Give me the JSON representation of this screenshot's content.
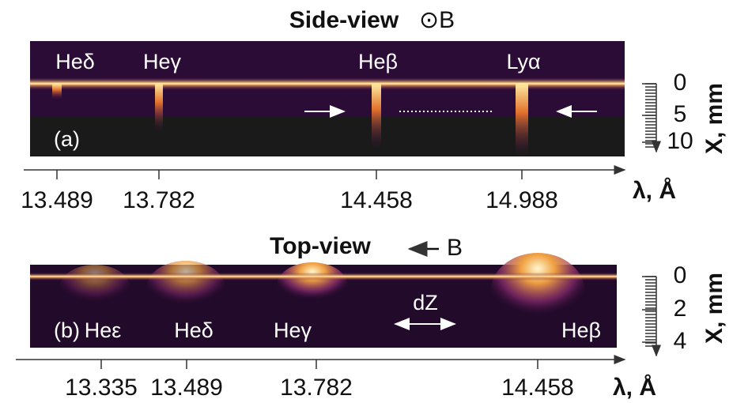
{
  "side_view": {
    "title": "Side-view",
    "field": "⊙B",
    "panel": "(a)",
    "lines": [
      "Heδ",
      "Heγ",
      "Heβ",
      "Lyα"
    ],
    "wavelength_ticks": [
      13.489,
      13.782,
      14.458,
      14.988
    ],
    "wavelength_label": "λ, Å",
    "depth_ticks": [
      0,
      5,
      10
    ],
    "depth_label": "X, mm"
  },
  "top_view": {
    "title": "Top-view",
    "field": "B",
    "panel": "(b)",
    "lines": [
      "Heε",
      "Heδ",
      "Heγ",
      "Heβ"
    ],
    "gap_label": "dZ",
    "wavelength_ticks": [
      13.335,
      13.489,
      13.782,
      14.458
    ],
    "wavelength_label": "λ, Å",
    "depth_ticks": [
      0,
      2,
      4
    ],
    "depth_label": "X, mm"
  }
}
